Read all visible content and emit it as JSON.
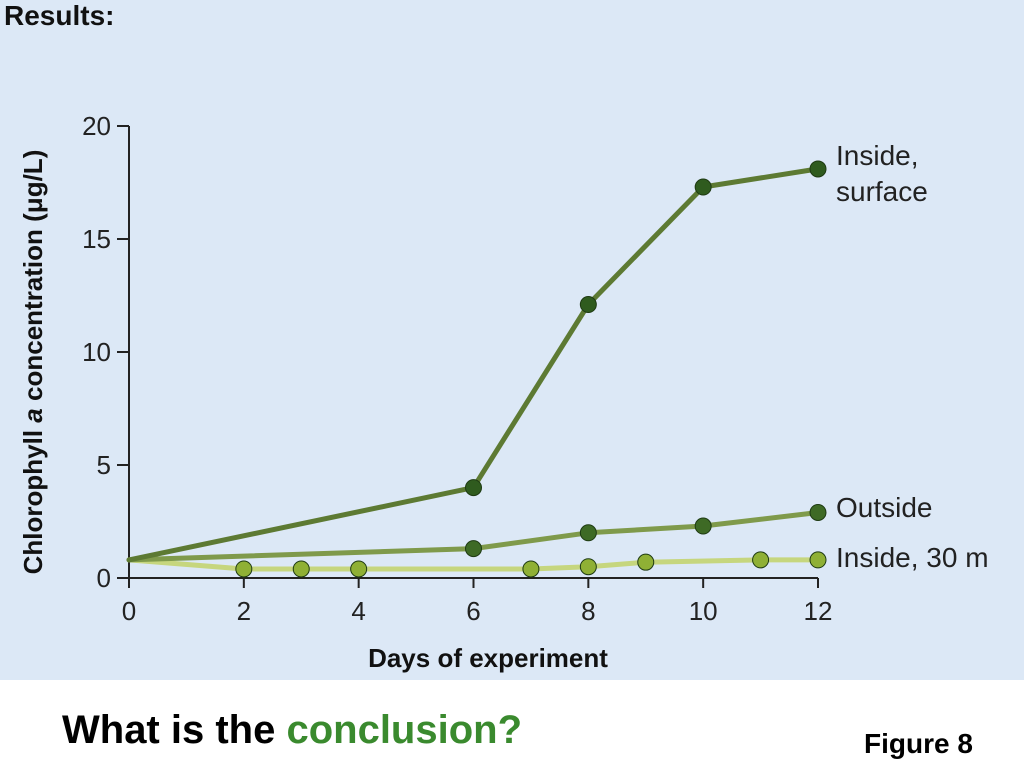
{
  "slide": {
    "heading": "Results:",
    "question_prefix": "What is the ",
    "question_highlight": "conclusion?",
    "figure_label": "Figure 8",
    "highlight_color": "#3a8a2e"
  },
  "chart_data": {
    "type": "line",
    "xlabel": "Days of experiment",
    "ylabel_parts": [
      "Chlorophyll ",
      "a",
      " concentration (",
      "μ",
      "g/L)"
    ],
    "xlim": [
      0,
      12
    ],
    "ylim": [
      0,
      20
    ],
    "x_ticks": [
      0,
      2,
      4,
      6,
      8,
      10,
      12
    ],
    "y_ticks": [
      0,
      5,
      10,
      15,
      20
    ],
    "grid": false,
    "series": [
      {
        "name": "Inside, surface",
        "label_lines": [
          "Inside,",
          "surface"
        ],
        "color": "#5d7a33",
        "marker_color": "#2f5b1e",
        "x": [
          0,
          6,
          8,
          10,
          12
        ],
        "y": [
          0.8,
          4.0,
          12.1,
          17.3,
          18.1
        ]
      },
      {
        "name": "Outside",
        "label_lines": [
          "Outside"
        ],
        "color": "#7f9a4b",
        "marker_color": "#3e6a25",
        "x": [
          0,
          6,
          8,
          10,
          12
        ],
        "y": [
          0.8,
          1.3,
          2.0,
          2.3,
          2.9
        ]
      },
      {
        "name": "Inside, 30 m",
        "label_lines": [
          "Inside, 30 m"
        ],
        "color": "#c6d67e",
        "marker_color": "#8fb035",
        "x": [
          0,
          2,
          3,
          4,
          7,
          8,
          9,
          11,
          12
        ],
        "y": [
          0.8,
          0.4,
          0.4,
          0.4,
          0.4,
          0.5,
          0.7,
          0.8,
          0.8
        ]
      }
    ]
  }
}
